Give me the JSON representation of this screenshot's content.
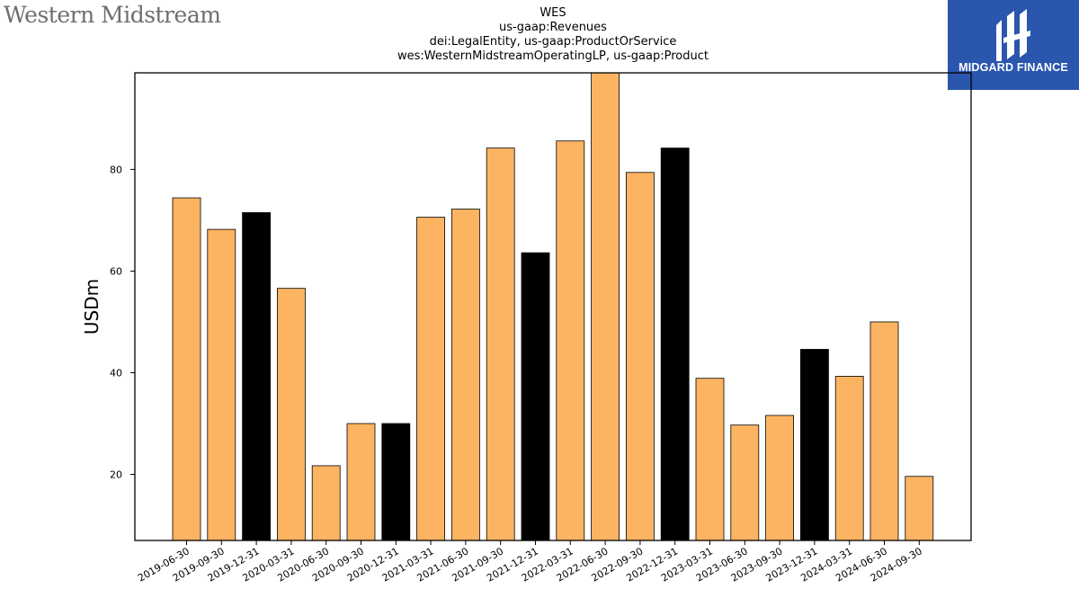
{
  "logos": {
    "left_text": "Western Midstream",
    "right_text": "MIDGARD FINANCE"
  },
  "colors": {
    "bar_default": "#fdb462",
    "bar_highlight": "#000000",
    "logo_right_bg": "#2b56ad",
    "logo_left_text": "#6b6f73"
  },
  "chart_data": {
    "type": "bar",
    "title_lines": [
      "WES",
      "us-gaap:Revenues",
      "dei:LegalEntity, us-gaap:ProductOrService",
      "wes:WesternMidstreamOperatingLP, us-gaap:Product"
    ],
    "xlabel": "",
    "ylabel": "USDm",
    "ylim": [
      7,
      99
    ],
    "yticks": [
      20,
      40,
      60,
      80
    ],
    "categories": [
      "2019-06-30",
      "2019-09-30",
      "2019-12-31",
      "2020-03-31",
      "2020-06-30",
      "2020-09-30",
      "2020-12-31",
      "2021-03-31",
      "2021-06-30",
      "2021-09-30",
      "2021-12-31",
      "2022-03-31",
      "2022-06-30",
      "2022-09-30",
      "2022-12-31",
      "2023-03-31",
      "2023-06-30",
      "2023-09-30",
      "2023-12-31",
      "2024-03-31",
      "2024-06-30",
      "2024-09-30"
    ],
    "values": [
      74.4,
      68.2,
      71.5,
      56.6,
      21.7,
      30.0,
      30.0,
      70.6,
      72.2,
      84.2,
      63.6,
      85.6,
      99.5,
      79.4,
      84.2,
      38.9,
      29.7,
      31.6,
      44.6,
      39.3,
      50.0,
      19.6
    ],
    "highlighted": [
      false,
      false,
      true,
      false,
      false,
      false,
      true,
      false,
      false,
      false,
      true,
      false,
      false,
      false,
      true,
      false,
      false,
      false,
      true,
      false,
      false,
      false
    ],
    "grid": false,
    "legend": "none"
  }
}
